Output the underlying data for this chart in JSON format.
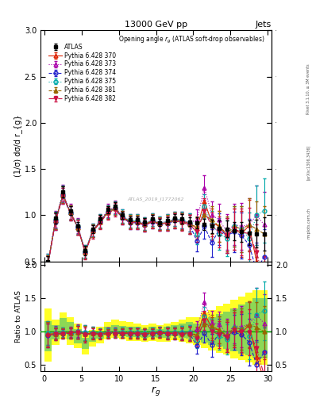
{
  "title_top": "13000 GeV pp",
  "title_right": "Jets",
  "plot_title": "Opening angle r_{g} (ATLAS soft-drop observables)",
  "xlabel": "r_{g}",
  "ylabel_main": "(1/σ) dσ/d r_{g}",
  "ylabel_ratio": "Ratio to ATLAS",
  "watermark": "ATLAS_2019_I1772062",
  "rivet_label": "Rivet 3.1.10, ≥ 3M events",
  "arxiv_label": "[arXiv:1306.3436]",
  "mcplots_label": "mcplots.cern.ch",
  "ylim_main": [
    0.5,
    3.0
  ],
  "ylim_ratio": [
    0.4,
    2.05
  ],
  "xlim": [
    -0.5,
    30.5
  ],
  "yticks_main": [
    0.5,
    1.0,
    1.5,
    2.0,
    2.5,
    3.0
  ],
  "yticks_ratio": [
    0.5,
    1.0,
    1.5,
    2.0
  ],
  "xticks": [
    0,
    5,
    10,
    15,
    20,
    25,
    30
  ],
  "series": [
    {
      "label": "ATLAS",
      "color": "black",
      "marker": "s",
      "linestyle": "none",
      "markersize": 3.5,
      "fillstyle": "full",
      "x": [
        0.5,
        1.5,
        2.5,
        3.5,
        4.5,
        5.5,
        6.5,
        7.5,
        8.5,
        9.5,
        10.5,
        11.5,
        12.5,
        13.5,
        14.5,
        15.5,
        16.5,
        17.5,
        18.5,
        19.5,
        20.5,
        21.5,
        22.5,
        23.5,
        24.5,
        25.5,
        26.5,
        27.5,
        28.5,
        29.5
      ],
      "y": [
        0.5,
        0.97,
        1.25,
        1.05,
        0.88,
        0.62,
        0.85,
        0.96,
        1.06,
        1.1,
        1.0,
        0.95,
        0.95,
        0.93,
        0.96,
        0.92,
        0.94,
        0.97,
        0.96,
        0.93,
        0.92,
        0.9,
        0.88,
        0.86,
        0.85,
        0.83,
        0.82,
        0.81,
        0.8,
        0.8
      ],
      "yerr": [
        0.06,
        0.06,
        0.06,
        0.05,
        0.05,
        0.05,
        0.04,
        0.04,
        0.04,
        0.04,
        0.04,
        0.04,
        0.04,
        0.04,
        0.04,
        0.04,
        0.04,
        0.04,
        0.05,
        0.05,
        0.06,
        0.06,
        0.07,
        0.08,
        0.09,
        0.1,
        0.11,
        0.13,
        0.15,
        0.18
      ]
    },
    {
      "label": "Pythia 6.428 370",
      "color": "#dd2200",
      "marker": "^",
      "linestyle": "-",
      "markersize": 3.5,
      "fillstyle": "none",
      "x": [
        0.5,
        1.5,
        2.5,
        3.5,
        4.5,
        5.5,
        6.5,
        7.5,
        8.5,
        9.5,
        10.5,
        11.5,
        12.5,
        13.5,
        14.5,
        15.5,
        16.5,
        17.5,
        18.5,
        19.5,
        20.5,
        21.5,
        22.5,
        23.5,
        24.5,
        25.5,
        26.5,
        27.5,
        28.5,
        29.5
      ],
      "y": [
        0.48,
        0.94,
        1.22,
        1.03,
        0.87,
        0.6,
        0.83,
        0.93,
        1.04,
        1.08,
        0.98,
        0.93,
        0.93,
        0.9,
        0.94,
        0.91,
        0.92,
        0.95,
        0.94,
        0.91,
        0.86,
        1.15,
        0.92,
        0.88,
        0.78,
        0.85,
        0.8,
        0.89,
        0.5,
        0.22
      ],
      "yerr": [
        0.09,
        0.09,
        0.09,
        0.08,
        0.08,
        0.07,
        0.07,
        0.07,
        0.07,
        0.07,
        0.07,
        0.07,
        0.07,
        0.07,
        0.07,
        0.07,
        0.08,
        0.08,
        0.09,
        0.1,
        0.11,
        0.13,
        0.15,
        0.17,
        0.19,
        0.22,
        0.25,
        0.28,
        0.3,
        0.25
      ]
    },
    {
      "label": "Pythia 6.428 373",
      "color": "#aa00aa",
      "marker": "^",
      "linestyle": "dotted",
      "markersize": 3.5,
      "fillstyle": "none",
      "x": [
        0.5,
        1.5,
        2.5,
        3.5,
        4.5,
        5.5,
        6.5,
        7.5,
        8.5,
        9.5,
        10.5,
        11.5,
        12.5,
        13.5,
        14.5,
        15.5,
        16.5,
        17.5,
        18.5,
        19.5,
        20.5,
        21.5,
        22.5,
        23.5,
        24.5,
        25.5,
        26.5,
        27.5,
        28.5,
        29.5
      ],
      "y": [
        0.49,
        0.96,
        1.24,
        1.04,
        0.89,
        0.61,
        0.84,
        0.94,
        1.05,
        1.09,
        0.99,
        0.94,
        0.94,
        0.91,
        0.95,
        0.92,
        0.93,
        0.96,
        0.95,
        0.92,
        0.95,
        1.3,
        1.0,
        0.95,
        0.82,
        0.9,
        0.88,
        0.9,
        1.0,
        0.9
      ],
      "yerr": [
        0.09,
        0.09,
        0.09,
        0.08,
        0.08,
        0.07,
        0.07,
        0.07,
        0.07,
        0.07,
        0.07,
        0.07,
        0.07,
        0.07,
        0.07,
        0.07,
        0.08,
        0.08,
        0.09,
        0.1,
        0.11,
        0.13,
        0.15,
        0.17,
        0.19,
        0.22,
        0.25,
        0.28,
        0.32,
        0.35
      ]
    },
    {
      "label": "Pythia 6.428 374",
      "color": "#2222cc",
      "marker": "o",
      "linestyle": "dashed",
      "markersize": 3.5,
      "fillstyle": "none",
      "x": [
        0.5,
        1.5,
        2.5,
        3.5,
        4.5,
        5.5,
        6.5,
        7.5,
        8.5,
        9.5,
        10.5,
        11.5,
        12.5,
        13.5,
        14.5,
        15.5,
        16.5,
        17.5,
        18.5,
        19.5,
        20.5,
        21.5,
        22.5,
        23.5,
        24.5,
        25.5,
        26.5,
        27.5,
        28.5,
        29.5
      ],
      "y": [
        0.47,
        0.93,
        1.21,
        1.02,
        0.87,
        0.6,
        0.83,
        0.93,
        1.03,
        1.07,
        0.97,
        0.92,
        0.92,
        0.89,
        0.93,
        0.9,
        0.91,
        0.94,
        0.93,
        0.9,
        0.72,
        0.88,
        0.7,
        0.85,
        0.78,
        0.82,
        0.78,
        0.68,
        0.4,
        0.55
      ],
      "yerr": [
        0.09,
        0.09,
        0.09,
        0.08,
        0.08,
        0.07,
        0.07,
        0.07,
        0.07,
        0.07,
        0.07,
        0.07,
        0.07,
        0.07,
        0.07,
        0.07,
        0.08,
        0.08,
        0.09,
        0.1,
        0.11,
        0.13,
        0.15,
        0.17,
        0.19,
        0.22,
        0.25,
        0.28,
        0.3,
        0.3
      ]
    },
    {
      "label": "Pythia 6.428 375",
      "color": "#00aaaa",
      "marker": "o",
      "linestyle": "dotted",
      "markersize": 3.5,
      "fillstyle": "none",
      "x": [
        0.5,
        1.5,
        2.5,
        3.5,
        4.5,
        5.5,
        6.5,
        7.5,
        8.5,
        9.5,
        10.5,
        11.5,
        12.5,
        13.5,
        14.5,
        15.5,
        16.5,
        17.5,
        18.5,
        19.5,
        20.5,
        21.5,
        22.5,
        23.5,
        24.5,
        25.5,
        26.5,
        27.5,
        28.5,
        29.5
      ],
      "y": [
        0.49,
        0.95,
        1.23,
        1.03,
        0.88,
        0.61,
        0.84,
        0.94,
        1.04,
        1.08,
        0.99,
        0.94,
        0.94,
        0.91,
        0.95,
        0.92,
        0.93,
        0.96,
        0.95,
        0.92,
        0.8,
        1.1,
        0.9,
        0.8,
        0.75,
        0.88,
        0.85,
        0.75,
        1.0,
        1.05
      ],
      "yerr": [
        0.09,
        0.09,
        0.09,
        0.08,
        0.08,
        0.07,
        0.07,
        0.07,
        0.07,
        0.07,
        0.07,
        0.07,
        0.07,
        0.07,
        0.07,
        0.07,
        0.08,
        0.08,
        0.09,
        0.1,
        0.11,
        0.13,
        0.15,
        0.17,
        0.19,
        0.22,
        0.25,
        0.28,
        0.32,
        0.35
      ]
    },
    {
      "label": "Pythia 6.428 381",
      "color": "#996600",
      "marker": "^",
      "linestyle": "dashed",
      "markersize": 3.5,
      "fillstyle": "full",
      "x": [
        0.5,
        1.5,
        2.5,
        3.5,
        4.5,
        5.5,
        6.5,
        7.5,
        8.5,
        9.5,
        10.5,
        11.5,
        12.5,
        13.5,
        14.5,
        15.5,
        16.5,
        17.5,
        18.5,
        19.5,
        20.5,
        21.5,
        22.5,
        23.5,
        24.5,
        25.5,
        26.5,
        27.5,
        28.5,
        29.5
      ],
      "y": [
        0.48,
        0.94,
        1.22,
        1.03,
        0.87,
        0.6,
        0.83,
        0.93,
        1.03,
        1.07,
        0.98,
        0.93,
        0.93,
        0.9,
        0.94,
        0.91,
        0.92,
        0.95,
        0.93,
        0.9,
        0.88,
        1.0,
        0.95,
        0.88,
        0.8,
        0.88,
        0.85,
        0.9,
        0.85,
        0.8
      ],
      "yerr": [
        0.09,
        0.09,
        0.09,
        0.08,
        0.08,
        0.07,
        0.07,
        0.07,
        0.07,
        0.07,
        0.07,
        0.07,
        0.07,
        0.07,
        0.07,
        0.07,
        0.08,
        0.08,
        0.09,
        0.1,
        0.11,
        0.13,
        0.15,
        0.17,
        0.19,
        0.22,
        0.25,
        0.28,
        0.3,
        0.3
      ]
    },
    {
      "label": "Pythia 6.428 382",
      "color": "#cc1144",
      "marker": "v",
      "linestyle": "dashdot",
      "markersize": 3.5,
      "fillstyle": "full",
      "x": [
        0.5,
        1.5,
        2.5,
        3.5,
        4.5,
        5.5,
        6.5,
        7.5,
        8.5,
        9.5,
        10.5,
        11.5,
        12.5,
        13.5,
        14.5,
        15.5,
        16.5,
        17.5,
        18.5,
        19.5,
        20.5,
        21.5,
        22.5,
        23.5,
        24.5,
        25.5,
        26.5,
        27.5,
        28.5,
        29.5
      ],
      "y": [
        0.47,
        0.93,
        1.21,
        1.02,
        0.87,
        0.59,
        0.82,
        0.92,
        1.02,
        1.06,
        0.97,
        0.92,
        0.92,
        0.89,
        0.93,
        0.9,
        0.91,
        0.94,
        0.92,
        0.9,
        0.82,
        1.05,
        0.88,
        0.82,
        0.78,
        0.85,
        0.82,
        0.8,
        0.6,
        0.28
      ],
      "yerr": [
        0.09,
        0.09,
        0.09,
        0.08,
        0.08,
        0.07,
        0.07,
        0.07,
        0.07,
        0.07,
        0.07,
        0.07,
        0.07,
        0.07,
        0.07,
        0.07,
        0.08,
        0.08,
        0.09,
        0.1,
        0.11,
        0.13,
        0.15,
        0.17,
        0.19,
        0.22,
        0.25,
        0.28,
        0.3,
        0.28
      ]
    }
  ],
  "band_yellow_edges": [
    0,
    1,
    2,
    3,
    4,
    5,
    6,
    7,
    8,
    9,
    10,
    11,
    12,
    13,
    14,
    15,
    16,
    17,
    18,
    19,
    20,
    21,
    22,
    23,
    24,
    25,
    26,
    27,
    28,
    29,
    30
  ],
  "band_yellow_lo": [
    0.55,
    0.8,
    0.88,
    0.8,
    0.75,
    0.65,
    0.78,
    0.82,
    0.88,
    0.9,
    0.88,
    0.86,
    0.86,
    0.84,
    0.86,
    0.84,
    0.85,
    0.87,
    0.85,
    0.82,
    0.8,
    0.75,
    0.72,
    0.68,
    0.65,
    0.6,
    0.57,
    0.54,
    0.5,
    0.5
  ],
  "band_yellow_hi": [
    1.35,
    1.18,
    1.28,
    1.22,
    1.12,
    0.98,
    1.02,
    1.07,
    1.14,
    1.18,
    1.15,
    1.14,
    1.12,
    1.1,
    1.12,
    1.1,
    1.12,
    1.14,
    1.18,
    1.22,
    1.22,
    1.28,
    1.32,
    1.38,
    1.42,
    1.48,
    1.52,
    1.58,
    1.62,
    1.62
  ],
  "band_green_lo": [
    0.7,
    0.88,
    0.96,
    0.88,
    0.82,
    0.74,
    0.85,
    0.89,
    0.94,
    0.96,
    0.93,
    0.92,
    0.92,
    0.9,
    0.92,
    0.9,
    0.91,
    0.93,
    0.91,
    0.89,
    0.87,
    0.83,
    0.8,
    0.77,
    0.74,
    0.7,
    0.67,
    0.64,
    0.61,
    0.6
  ],
  "band_green_hi": [
    1.15,
    1.1,
    1.2,
    1.14,
    1.04,
    0.9,
    0.96,
    1.0,
    1.07,
    1.1,
    1.08,
    1.07,
    1.07,
    1.04,
    1.07,
    1.04,
    1.07,
    1.1,
    1.12,
    1.14,
    1.12,
    1.18,
    1.22,
    1.26,
    1.3,
    1.35,
    1.4,
    1.44,
    1.5,
    1.5
  ]
}
